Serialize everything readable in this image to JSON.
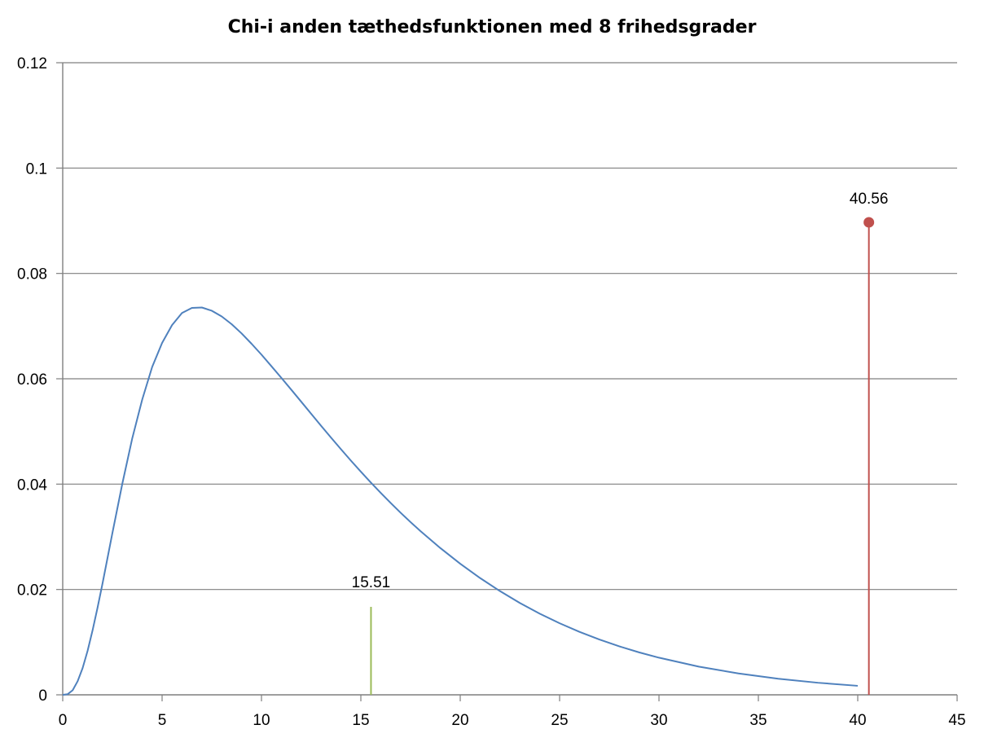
{
  "chart_data": {
    "type": "line",
    "title": "Chi-i anden tæthedsfunktionen med 8 frihedsgrader",
    "xlabel": "",
    "ylabel": "",
    "xlim": [
      0,
      45
    ],
    "ylim": [
      0,
      0.12
    ],
    "x_ticks": [
      0,
      5,
      10,
      15,
      20,
      25,
      30,
      35,
      40,
      45
    ],
    "y_ticks": [
      0,
      0.02,
      0.04,
      0.06,
      0.08,
      0.1,
      0.12
    ],
    "x_tick_labels": [
      "0",
      "5",
      "10",
      "15",
      "20",
      "25",
      "30",
      "35",
      "40",
      "45"
    ],
    "y_tick_labels": [
      "0",
      "0.02",
      "0.04",
      "0.06",
      "0.08",
      "0.1",
      "0.12"
    ],
    "grid": "horizontal",
    "legend": "none",
    "series": [
      {
        "type": "line",
        "color": "#4f81bd",
        "x": [
          0.25,
          0.5,
          0.75,
          1,
          1.25,
          1.5,
          1.75,
          2,
          2.5,
          3,
          3.5,
          4,
          4.5,
          5,
          5.5,
          6,
          6.5,
          7,
          7.5,
          8,
          8.5,
          9,
          9.5,
          10,
          10.5,
          11,
          11.5,
          12,
          12.5,
          13,
          13.5,
          14,
          14.5,
          15,
          15.5,
          16,
          16.5,
          17,
          17.5,
          18,
          19,
          20,
          21,
          22,
          23,
          24,
          25,
          26,
          27,
          28,
          29,
          30,
          32,
          34,
          36,
          38,
          40
        ],
        "y": [
          0.00012,
          0.00087,
          0.00258,
          0.00506,
          0.00833,
          0.01221,
          0.01651,
          0.02109,
          0.03072,
          0.04011,
          0.04872,
          0.05606,
          0.06224,
          0.0668,
          0.07019,
          0.07248,
          0.07346,
          0.07353,
          0.07292,
          0.07183,
          0.07036,
          0.06861,
          0.06665,
          0.06458,
          0.06239,
          0.06018,
          0.05792,
          0.05564,
          0.05335,
          0.05107,
          0.04883,
          0.04662,
          0.04446,
          0.04236,
          0.04031,
          0.03834,
          0.03642,
          0.03457,
          0.03279,
          0.03108,
          0.02786,
          0.02489,
          0.02217,
          0.01969,
          0.01744,
          0.01541,
          0.01359,
          0.01196,
          0.01051,
          0.00921,
          0.00806,
          0.00705,
          0.00536,
          0.00406,
          0.00306,
          0.00229,
          0.00171
        ]
      },
      {
        "type": "vline",
        "color": "#9bbb59",
        "x": 15.51,
        "y": 0.0167,
        "label": "15.51"
      },
      {
        "type": "vline-marker",
        "color": "#c0504d",
        "x": 40.56,
        "y": 0.0897,
        "label": "40.56"
      }
    ]
  }
}
